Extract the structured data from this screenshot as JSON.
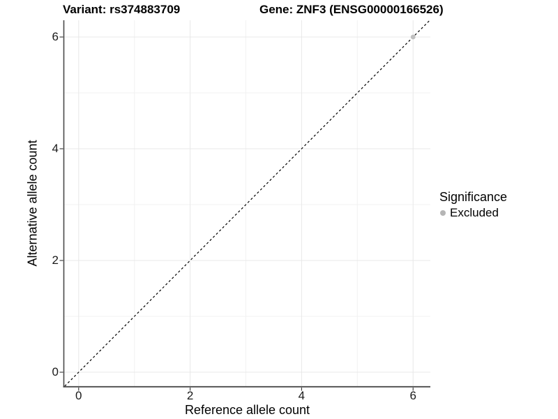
{
  "chart_data": {
    "type": "scatter",
    "title_left": "Variant: rs374883709",
    "title_right": "Gene: ZNF3 (ENSG00000166526)",
    "xlabel": "Reference allele count",
    "ylabel": "Alternative allele count",
    "xlim": [
      -0.26,
      6.31
    ],
    "ylim": [
      -0.25,
      6.3
    ],
    "xticks": [
      0,
      2,
      4,
      6
    ],
    "yticks": [
      0,
      2,
      4,
      6
    ],
    "minor_ticks": [
      1,
      3,
      5
    ],
    "grid": true,
    "points": [
      {
        "x": 6,
        "y": 6,
        "significance": "Excluded"
      }
    ],
    "identity_line": {
      "from": -0.25,
      "to": 6.3,
      "style": "dashed",
      "color": "#000000"
    },
    "legend": {
      "title": "Significance",
      "position": "right",
      "items": [
        {
          "label": "Excluded",
          "color": "#b5b5b5"
        }
      ]
    },
    "colors": {
      "point_excluded": "#bfbfbf",
      "grid_major": "#e8e8e8",
      "grid_minor": "#f2f2f2",
      "axis_line": "#4a4a4a",
      "tick_mark": "#333333",
      "background": "#ffffff"
    }
  }
}
